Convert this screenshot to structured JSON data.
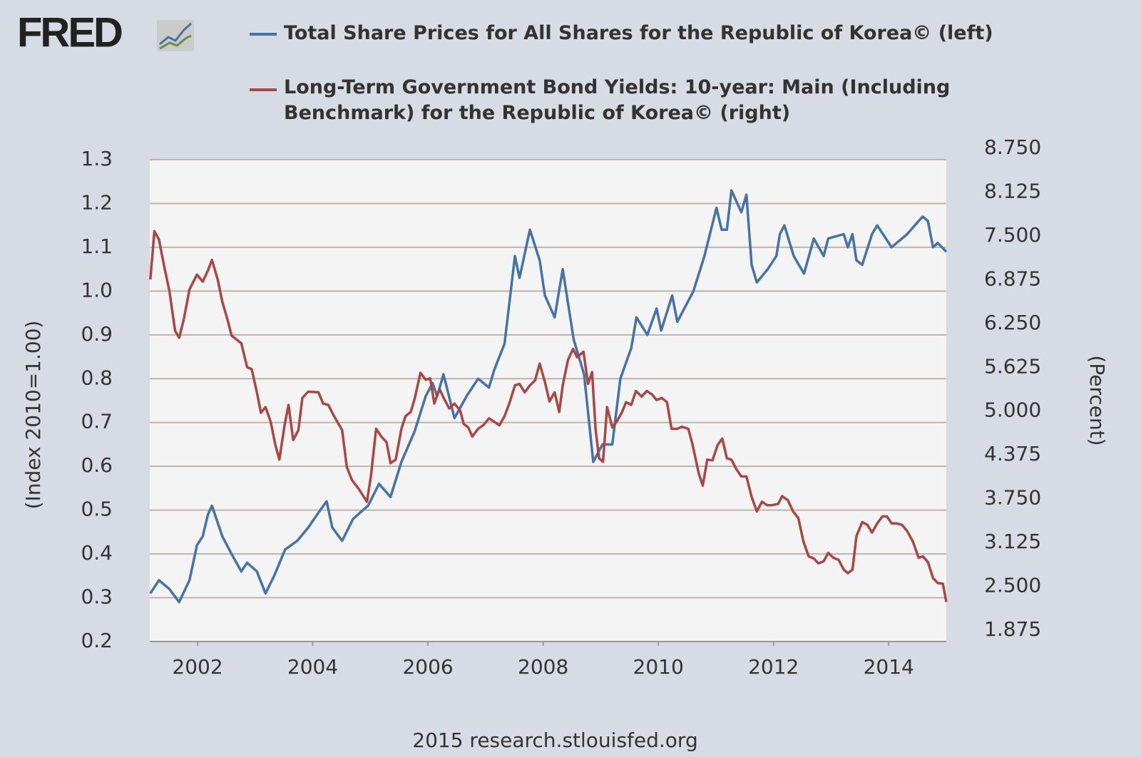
{
  "logo": "FRED",
  "footer": "2015 research.stlouisfed.org",
  "chart_data": {
    "type": "line",
    "ylabel": "(Index 2010=1.00)",
    "y2label": "(Percent)",
    "xlim": [
      2001.17,
      2015.0
    ],
    "xticks": [
      2002,
      2004,
      2006,
      2008,
      2010,
      2012,
      2014
    ],
    "ylim": [
      0.2,
      1.3
    ],
    "yticks": [
      0.2,
      0.3,
      0.4,
      0.5,
      0.6,
      0.7,
      0.8,
      0.9,
      {
        "value": 1,
        "label": "1.0"
      },
      1.1,
      1.2,
      1.3
    ],
    "y2lim": [
      1.875,
      8.75
    ],
    "y2ticks": [
      {
        "value": 1.875,
        "label": "1.875"
      },
      {
        "value": 2.5,
        "label": "2.500"
      },
      {
        "value": 3.125,
        "label": "3.125"
      },
      {
        "value": 3.75,
        "label": "3.750"
      },
      {
        "value": 4.375,
        "label": "4.375"
      },
      {
        "value": 5,
        "label": "5.000"
      },
      {
        "value": 5.625,
        "label": "5.625"
      },
      {
        "value": 6.25,
        "label": "6.250"
      },
      {
        "value": 6.875,
        "label": "6.875"
      },
      {
        "value": 7.5,
        "label": "7.500"
      },
      {
        "value": 8.125,
        "label": "8.125"
      },
      {
        "value": 8.75,
        "label": "8.750"
      }
    ],
    "grid": true,
    "series": [
      {
        "name": "Total Share Prices for All Shares for the Republic of Korea© (left)",
        "color": "#4572a7",
        "axis": "y",
        "x": [
          2001.18,
          2001.33,
          2001.51,
          2001.68,
          2001.86,
          2001.99,
          2002.09,
          2002.18,
          2002.25,
          2002.43,
          2002.59,
          2002.76,
          2002.86,
          2003.03,
          2003.18,
          2003.33,
          2003.52,
          2003.73,
          2003.92,
          2004.13,
          2004.24,
          2004.34,
          2004.51,
          2004.7,
          2004.96,
          2005.15,
          2005.35,
          2005.54,
          2005.77,
          2005.96,
          2006.08,
          2006.16,
          2006.27,
          2006.46,
          2006.67,
          2006.87,
          2007.06,
          2007.15,
          2007.33,
          2007.51,
          2007.59,
          2007.77,
          2007.94,
          2008.03,
          2008.2,
          2008.34,
          2008.53,
          2008.71,
          2008.87,
          2009.03,
          2009.2,
          2009.34,
          2009.53,
          2009.62,
          2009.81,
          2009.97,
          2010.05,
          2010.24,
          2010.33,
          2010.61,
          2010.8,
          2011.01,
          2011.1,
          2011.19,
          2011.27,
          2011.44,
          2011.53,
          2011.62,
          2011.71,
          2011.9,
          2012.05,
          2012.11,
          2012.19,
          2012.35,
          2012.53,
          2012.7,
          2012.87,
          2012.95,
          2013.22,
          2013.29,
          2013.37,
          2013.44,
          2013.54,
          2013.71,
          2013.8,
          2014.05,
          2014.14,
          2014.32,
          2014.52,
          2014.59,
          2014.68,
          2014.77,
          2014.85,
          2015.0
        ],
        "values": [
          0.31,
          0.34,
          0.32,
          0.29,
          0.34,
          0.42,
          0.44,
          0.49,
          0.51,
          0.44,
          0.4,
          0.36,
          0.38,
          0.36,
          0.31,
          0.35,
          0.41,
          0.43,
          0.46,
          0.5,
          0.52,
          0.46,
          0.43,
          0.48,
          0.51,
          0.56,
          0.53,
          0.61,
          0.68,
          0.76,
          0.79,
          0.76,
          0.81,
          0.71,
          0.76,
          0.8,
          0.78,
          0.82,
          0.88,
          1.08,
          1.03,
          1.14,
          1.07,
          0.99,
          0.94,
          1.05,
          0.89,
          0.81,
          0.61,
          0.65,
          0.65,
          0.8,
          0.87,
          0.94,
          0.9,
          0.96,
          0.91,
          0.99,
          0.93,
          1.0,
          1.08,
          1.19,
          1.14,
          1.14,
          1.23,
          1.18,
          1.22,
          1.06,
          1.02,
          1.05,
          1.08,
          1.13,
          1.15,
          1.08,
          1.04,
          1.12,
          1.08,
          1.12,
          1.13,
          1.1,
          1.13,
          1.07,
          1.06,
          1.13,
          1.15,
          1.1,
          1.11,
          1.13,
          1.16,
          1.17,
          1.16,
          1.1,
          1.11,
          1.09
        ]
      },
      {
        "name": "Long-Term Government Bond Yields: 10-year: Main (Including Benchmark) for the Republic of Korea© (right)",
        "color": "#aa4643",
        "axis": "y2",
        "x": [
          2001.18,
          2001.25,
          2001.33,
          2001.43,
          2001.51,
          2001.61,
          2001.68,
          2001.76,
          2001.86,
          2001.99,
          2002.09,
          2002.18,
          2002.25,
          2002.35,
          2002.43,
          2002.52,
          2002.59,
          2002.76,
          2002.86,
          2002.94,
          2003.03,
          2003.1,
          2003.18,
          2003.27,
          2003.35,
          2003.42,
          2003.51,
          2003.58,
          2003.66,
          2003.75,
          2003.82,
          2003.92,
          2004.1,
          2004.18,
          2004.27,
          2004.37,
          2004.51,
          2004.59,
          2004.68,
          2004.8,
          2004.94,
          2005.01,
          2005.1,
          2005.19,
          2005.28,
          2005.35,
          2005.44,
          2005.54,
          2005.61,
          2005.7,
          2005.77,
          2005.87,
          2005.96,
          2006.04,
          2006.11,
          2006.2,
          2006.28,
          2006.37,
          2006.46,
          2006.56,
          2006.62,
          2006.7,
          2006.77,
          2006.87,
          2006.96,
          2007.06,
          2007.15,
          2007.24,
          2007.33,
          2007.42,
          2007.51,
          2007.59,
          2007.68,
          2007.77,
          2007.86,
          2007.94,
          2008.03,
          2008.11,
          2008.2,
          2008.28,
          2008.34,
          2008.43,
          2008.52,
          2008.59,
          2008.7,
          2008.78,
          2008.85,
          2008.91,
          2008.97,
          2009.04,
          2009.11,
          2009.2,
          2009.29,
          2009.37,
          2009.44,
          2009.53,
          2009.61,
          2009.71,
          2009.8,
          2009.89,
          2009.97,
          2010.06,
          2010.15,
          2010.23,
          2010.33,
          2010.41,
          2010.52,
          2010.59,
          2010.7,
          2010.77,
          2010.85,
          2010.94,
          2011.03,
          2011.11,
          2011.19,
          2011.27,
          2011.35,
          2011.44,
          2011.53,
          2011.62,
          2011.71,
          2011.8,
          2011.89,
          2011.97,
          2012.08,
          2012.15,
          2012.25,
          2012.34,
          2012.43,
          2012.52,
          2012.61,
          2012.7,
          2012.78,
          2012.87,
          2012.95,
          2013.04,
          2013.13,
          2013.22,
          2013.29,
          2013.37,
          2013.44,
          2013.54,
          2013.63,
          2013.71,
          2013.8,
          2013.89,
          2013.97,
          2014.05,
          2014.14,
          2014.23,
          2014.32,
          2014.42,
          2014.52,
          2014.59,
          2014.68,
          2014.77,
          2014.85,
          2014.94,
          2015.0
        ],
        "values": [
          7.04,
          7.73,
          7.61,
          7.19,
          6.88,
          6.31,
          6.21,
          6.47,
          6.9,
          7.11,
          7.01,
          7.17,
          7.32,
          7.04,
          6.72,
          6.47,
          6.24,
          6.13,
          5.79,
          5.76,
          5.43,
          5.14,
          5.22,
          5.01,
          4.68,
          4.47,
          4.96,
          5.25,
          4.75,
          4.89,
          5.35,
          5.44,
          5.43,
          5.27,
          5.25,
          5.09,
          4.89,
          4.37,
          4.18,
          4.05,
          3.87,
          4.23,
          4.91,
          4.8,
          4.72,
          4.42,
          4.47,
          4.91,
          5.09,
          5.15,
          5.34,
          5.71,
          5.61,
          5.63,
          5.27,
          5.48,
          5.34,
          5.2,
          5.27,
          5.17,
          4.98,
          4.93,
          4.8,
          4.91,
          4.96,
          5.06,
          5.01,
          4.96,
          5.09,
          5.29,
          5.53,
          5.55,
          5.43,
          5.53,
          5.6,
          5.84,
          5.58,
          5.3,
          5.43,
          5.15,
          5.53,
          5.89,
          6.05,
          5.93,
          6.01,
          5.55,
          5.72,
          4.91,
          4.49,
          4.44,
          5.22,
          4.93,
          5.03,
          5.15,
          5.29,
          5.25,
          5.45,
          5.37,
          5.45,
          5.4,
          5.32,
          5.35,
          5.29,
          4.91,
          4.91,
          4.94,
          4.91,
          4.7,
          4.28,
          4.1,
          4.47,
          4.46,
          4.68,
          4.77,
          4.49,
          4.47,
          4.34,
          4.23,
          4.23,
          3.94,
          3.73,
          3.87,
          3.82,
          3.82,
          3.84,
          3.95,
          3.89,
          3.73,
          3.64,
          3.3,
          3.09,
          3.06,
          2.99,
          3.02,
          3.14,
          3.07,
          3.04,
          2.9,
          2.85,
          2.9,
          3.38,
          3.58,
          3.54,
          3.43,
          3.56,
          3.66,
          3.66,
          3.56,
          3.56,
          3.54,
          3.45,
          3.3,
          3.07,
          3.09,
          3.01,
          2.78,
          2.71,
          2.7,
          2.44
        ]
      }
    ]
  }
}
